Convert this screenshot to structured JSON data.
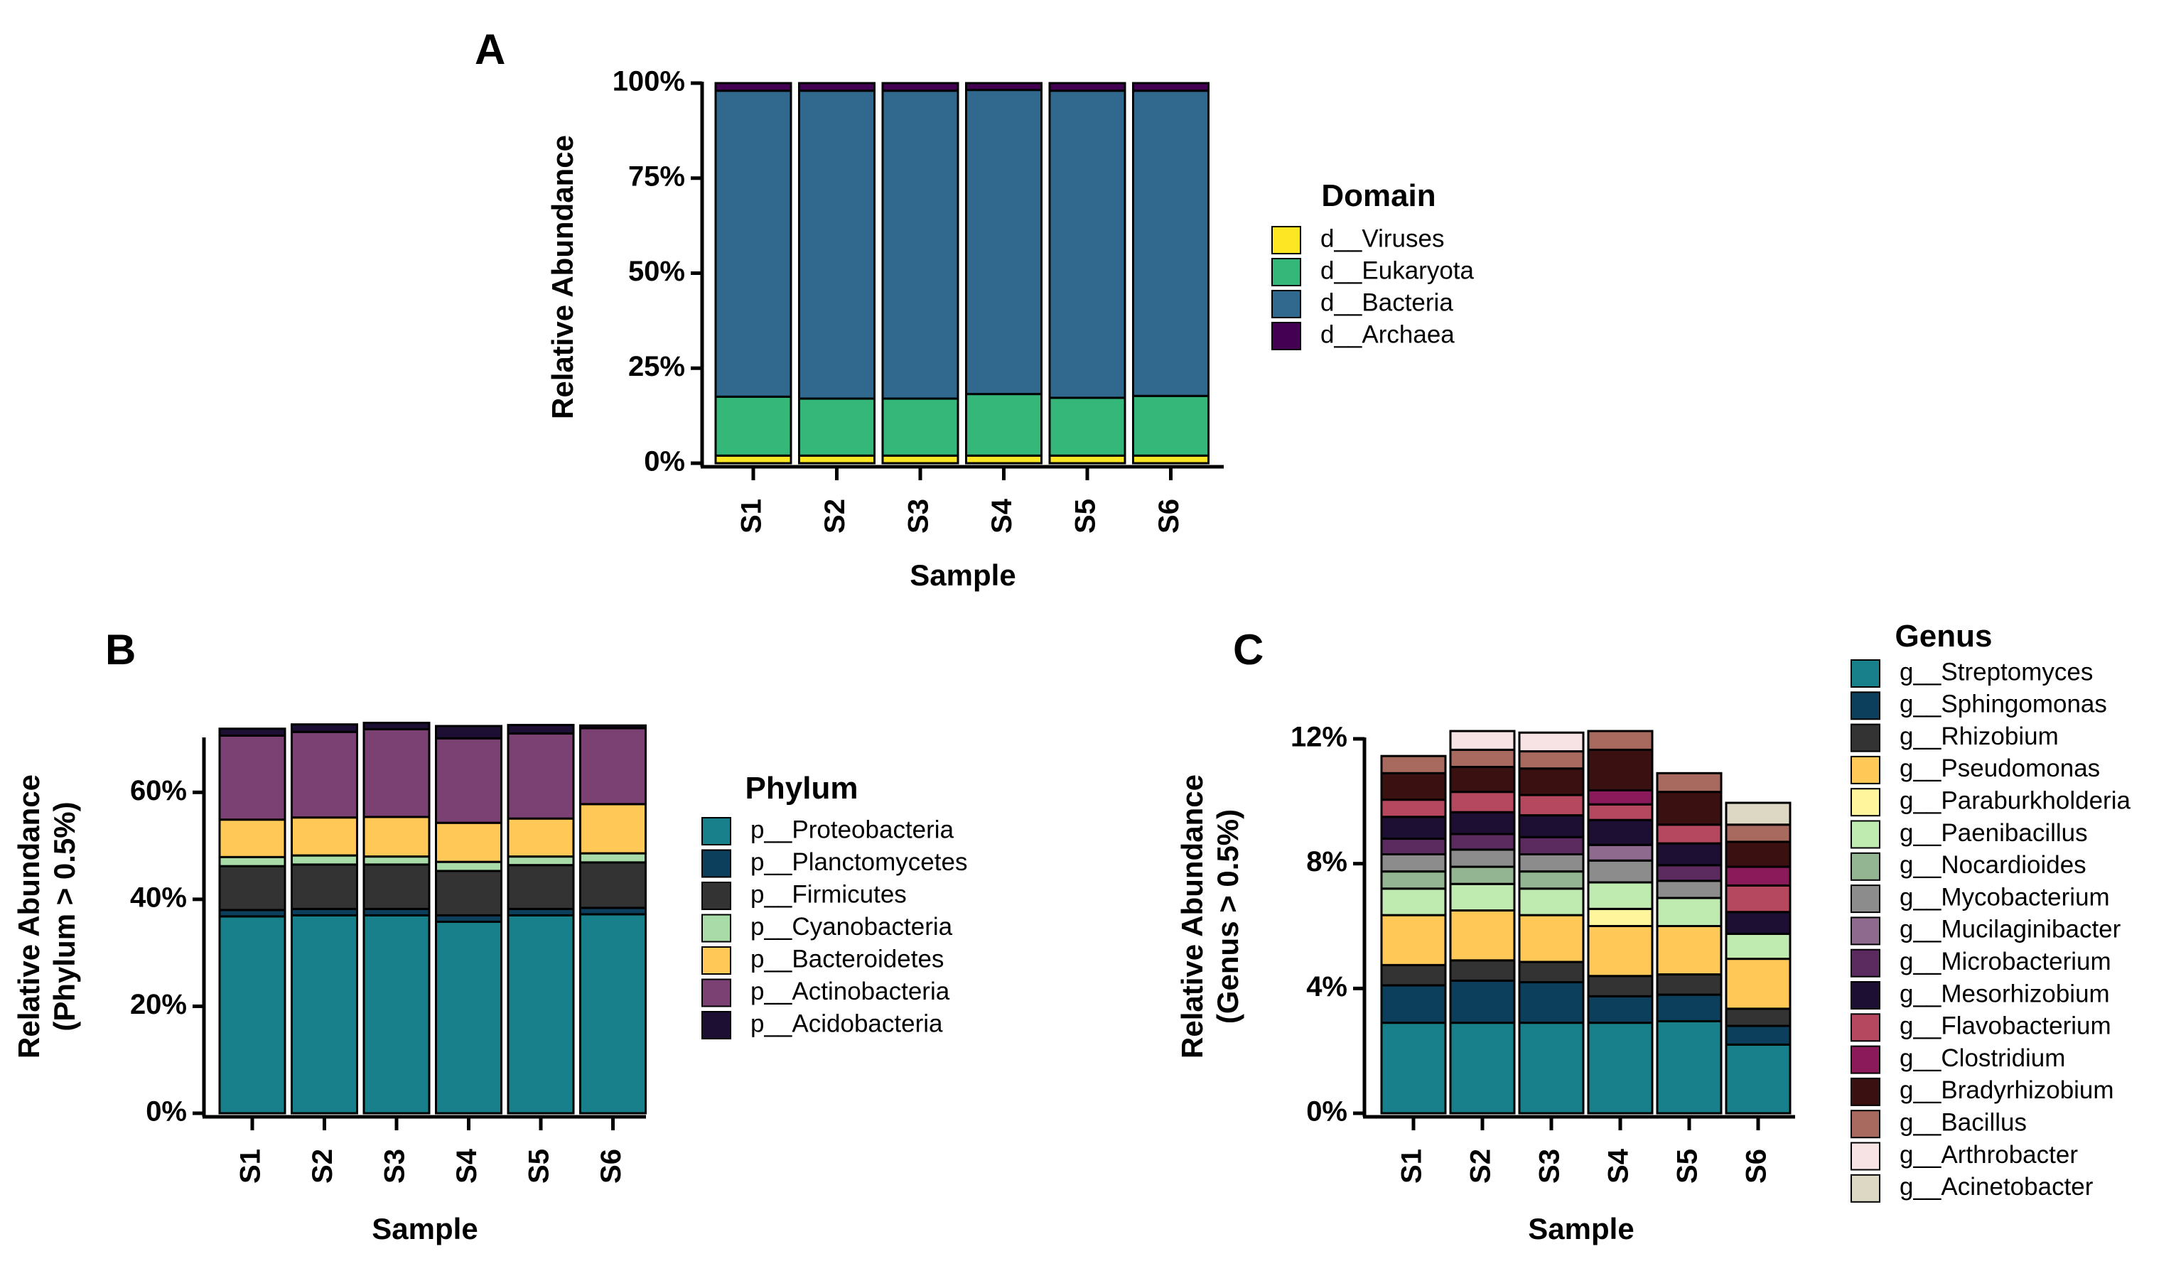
{
  "figure": {
    "panels": [
      "A",
      "B",
      "C"
    ]
  },
  "chart_data": [
    {
      "id": "A",
      "type": "bar",
      "stacked": true,
      "title": "",
      "xlabel": "Sample",
      "ylabel": "Relative Abundance",
      "ylim": [
        0,
        100
      ],
      "yticks": [
        0,
        25,
        50,
        75,
        100
      ],
      "ytick_labels": [
        "0%",
        "25%",
        "50%",
        "75%",
        "100%"
      ],
      "categories": [
        "S1",
        "S2",
        "S3",
        "S4",
        "S5",
        "S6"
      ],
      "legend_title": "Domain",
      "legend_order": [
        "d__Viruses",
        "d__Eukaryota",
        "d__Bacteria",
        "d__Archaea"
      ],
      "series": [
        {
          "name": "d__Viruses",
          "color": "#FDE725",
          "values": [
            2.0,
            2.0,
            2.0,
            2.0,
            2.0,
            2.0
          ]
        },
        {
          "name": "d__Eukaryota",
          "color": "#35B779",
          "values": [
            15.5,
            15.0,
            15.0,
            16.2,
            15.2,
            15.7
          ]
        },
        {
          "name": "d__Bacteria",
          "color": "#31688E",
          "values": [
            80.5,
            81.0,
            81.0,
            80.0,
            80.8,
            80.3
          ]
        },
        {
          "name": "d__Archaea",
          "color": "#440154",
          "values": [
            2.0,
            2.0,
            2.0,
            1.8,
            2.0,
            2.0
          ]
        }
      ]
    },
    {
      "id": "B",
      "type": "bar",
      "stacked": true,
      "title": "",
      "xlabel": "Sample",
      "ylabel": [
        "Relative Abundance",
        "(Phylum > 0.5%)"
      ],
      "ylim": [
        0,
        70
      ],
      "yticks": [
        0,
        20,
        40,
        60
      ],
      "ytick_labels": [
        "0%",
        "20%",
        "40%",
        "60%"
      ],
      "categories": [
        "S1",
        "S2",
        "S3",
        "S4",
        "S5",
        "S6"
      ],
      "legend_title": "Phylum",
      "legend_order": [
        "p__Proteobacteria",
        "p__Planctomycetes",
        "p__Firmicutes",
        "p__Cyanobacteria",
        "p__Bacteroidetes",
        "p__Actinobacteria",
        "p__Acidobacteria"
      ],
      "series": [
        {
          "name": "p__Proteobacteria",
          "color": "#17808A",
          "values": [
            36.8,
            37.0,
            37.0,
            35.8,
            37.0,
            37.2
          ]
        },
        {
          "name": "p__Planctomycetes",
          "color": "#0C3F5C",
          "values": [
            1.2,
            1.2,
            1.2,
            1.2,
            1.2,
            1.2
          ]
        },
        {
          "name": "p__Firmicutes",
          "color": "#333333",
          "values": [
            8.2,
            8.3,
            8.3,
            8.3,
            8.2,
            8.5
          ]
        },
        {
          "name": "p__Cyanobacteria",
          "color": "#A8DBA8",
          "values": [
            1.7,
            1.7,
            1.5,
            1.7,
            1.6,
            1.7
          ]
        },
        {
          "name": "p__Bacteroidetes",
          "color": "#FFC857",
          "values": [
            7.0,
            7.1,
            7.4,
            7.3,
            7.1,
            9.2
          ]
        },
        {
          "name": "p__Actinobacteria",
          "color": "#7B4173",
          "values": [
            15.7,
            16.0,
            16.4,
            15.8,
            15.9,
            14.2
          ]
        },
        {
          "name": "p__Acidobacteria",
          "color": "#1C0F33",
          "values": [
            1.3,
            1.4,
            1.2,
            2.3,
            1.6,
            0.5
          ]
        }
      ]
    },
    {
      "id": "C",
      "type": "bar",
      "stacked": true,
      "title": "",
      "xlabel": "Sample",
      "ylabel": [
        "Relative Abundance",
        "(Genus > 0.5%)"
      ],
      "ylim": [
        0,
        12
      ],
      "yticks": [
        0,
        4,
        8,
        12
      ],
      "ytick_labels": [
        "0%",
        "4%",
        "8%",
        "12%"
      ],
      "categories": [
        "S1",
        "S2",
        "S3",
        "S4",
        "S5",
        "S6"
      ],
      "legend_title": "Genus",
      "legend_order": [
        "g__Streptomyces",
        "g__Sphingomonas",
        "g__Rhizobium",
        "g__Pseudomonas",
        "g__Paraburkholderia",
        "g__Paenibacillus",
        "g__Nocardioides",
        "g__Mycobacterium",
        "g__Mucilaginibacter",
        "g__Microbacterium",
        "g__Mesorhizobium",
        "g__Flavobacterium",
        "g__Clostridium",
        "g__Bradyrhizobium",
        "g__Bacillus",
        "g__Arthrobacter",
        "g__Acinetobacter"
      ],
      "series": [
        {
          "name": "g__Streptomyces",
          "color": "#17808A",
          "values": [
            2.9,
            2.9,
            2.9,
            2.9,
            2.95,
            2.2
          ]
        },
        {
          "name": "g__Sphingomonas",
          "color": "#0C3F5C",
          "values": [
            1.2,
            1.35,
            1.3,
            0.85,
            0.85,
            0.6
          ]
        },
        {
          "name": "g__Rhizobium",
          "color": "#333333",
          "values": [
            0.65,
            0.65,
            0.65,
            0.65,
            0.65,
            0.55
          ]
        },
        {
          "name": "g__Pseudomonas",
          "color": "#FFC857",
          "values": [
            1.6,
            1.6,
            1.5,
            1.6,
            1.55,
            1.6
          ]
        },
        {
          "name": "g__Paraburkholderia",
          "color": "#FFF59D",
          "values": [
            0,
            0,
            0,
            0.55,
            0,
            0
          ]
        },
        {
          "name": "g__Paenibacillus",
          "color": "#BFEBB0",
          "values": [
            0.85,
            0.85,
            0.85,
            0.85,
            0.9,
            0.8
          ]
        },
        {
          "name": "g__Nocardioides",
          "color": "#94B592",
          "values": [
            0.55,
            0.55,
            0.55,
            0,
            0,
            0
          ]
        },
        {
          "name": "g__Mycobacterium",
          "color": "#8C8C8C",
          "values": [
            0.55,
            0.55,
            0.55,
            0.7,
            0.55,
            0
          ]
        },
        {
          "name": "g__Mucilaginibacter",
          "color": "#8E6B8E",
          "values": [
            0,
            0,
            0,
            0.5,
            0,
            0
          ]
        },
        {
          "name": "g__Microbacterium",
          "color": "#5B2A5E",
          "values": [
            0.5,
            0.5,
            0.55,
            0,
            0.5,
            0
          ]
        },
        {
          "name": "g__Mesorhizobium",
          "color": "#1C0F33",
          "values": [
            0.7,
            0.7,
            0.7,
            0.8,
            0.7,
            0.7
          ]
        },
        {
          "name": "g__Flavobacterium",
          "color": "#B5485F",
          "values": [
            0.55,
            0.65,
            0.65,
            0.5,
            0.6,
            0.85
          ]
        },
        {
          "name": "g__Clostridium",
          "color": "#8B1A5A",
          "values": [
            0,
            0,
            0,
            0.45,
            0,
            0.6
          ]
        },
        {
          "name": "g__Bradyrhizobium",
          "color": "#3B1010",
          "values": [
            0.85,
            0.8,
            0.85,
            1.3,
            1.05,
            0.8
          ]
        },
        {
          "name": "g__Bacillus",
          "color": "#A86A5F",
          "values": [
            0.55,
            0.55,
            0.55,
            0.6,
            0.6,
            0.55
          ]
        },
        {
          "name": "g__Arthrobacter",
          "color": "#F7E3E3",
          "values": [
            0,
            0.6,
            0.6,
            0,
            0,
            0
          ]
        },
        {
          "name": "g__Acinetobacter",
          "color": "#DDD8C4",
          "values": [
            0,
            0,
            0,
            0,
            0,
            0.7
          ]
        }
      ]
    }
  ]
}
